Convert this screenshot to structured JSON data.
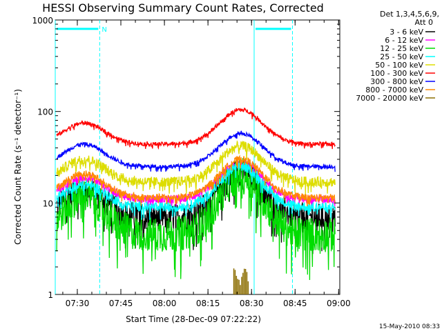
{
  "chart_data": {
    "type": "line",
    "title": "HESSI Observing Summary Count Rates, Corrected",
    "xlabel": "Start Time (28-Dec-09 07:22:22)",
    "ylabel": "Corrected Count Rate (s⁻¹ detector⁻¹)",
    "yscale": "log",
    "ylim": [
      1,
      1000
    ],
    "xlim_minutes": [
      0,
      98
    ],
    "x_ticks": [
      {
        "m": 7.6,
        "label": "07:30"
      },
      {
        "m": 22.6,
        "label": "07:45"
      },
      {
        "m": 37.6,
        "label": "08:00"
      },
      {
        "m": 52.6,
        "label": "08:15"
      },
      {
        "m": 67.6,
        "label": "08:30"
      },
      {
        "m": 82.6,
        "label": "08:45"
      },
      {
        "m": 97.6,
        "label": "09:00"
      }
    ],
    "y_ticks": [
      {
        "v": 1,
        "label": "1"
      },
      {
        "v": 10,
        "label": "10"
      },
      {
        "v": 100,
        "label": "100"
      },
      {
        "v": 1000,
        "label": "1000"
      }
    ],
    "legend_header": [
      "Det 1,3,4,5,6,9,",
      "Att 0"
    ],
    "legend_position": "right",
    "series": [
      {
        "name": "3 - 6 keV",
        "color": "#000000",
        "base": 7,
        "peak1": 14,
        "peak2": 22,
        "noise": 0.28
      },
      {
        "name": "6 - 12 keV",
        "color": "#ff00ff",
        "base": 11,
        "peak1": 19,
        "peak2": 27,
        "noise": 0.08
      },
      {
        "name": "12 - 25 keV",
        "color": "#00dd00",
        "base": 4.5,
        "peak1": 12,
        "peak2": 20,
        "noise": 0.35
      },
      {
        "name": "25 - 50 keV",
        "color": "#00ffff",
        "base": 9,
        "peak1": 16,
        "peak2": 25,
        "noise": 0.1
      },
      {
        "name": "50 - 100 keV",
        "color": "#dddd00",
        "base": 17,
        "peak1": 30,
        "peak2": 42,
        "noise": 0.1
      },
      {
        "name": "100 - 300 keV",
        "color": "#ff0000",
        "base": 44,
        "peak1": 75,
        "peak2": 105,
        "noise": 0.04
      },
      {
        "name": "300 - 800 keV",
        "color": "#0000ff",
        "base": 25,
        "peak1": 44,
        "peak2": 58,
        "noise": 0.04
      },
      {
        "name": "800 - 7000 keV",
        "color": "#ff8800",
        "base": 11.5,
        "peak1": 21,
        "peak2": 30,
        "noise": 0.07
      },
      {
        "name": "7000 - 20000 keV",
        "color": "#8b6d00",
        "base": 0,
        "peak1": 0,
        "peak2": 2,
        "noise": 0
      }
    ],
    "eclipse_bars": [
      {
        "start": 0,
        "end": 15.3,
        "label": "N"
      },
      {
        "start": 68.5,
        "end": 81.7,
        "label": ""
      }
    ],
    "eclipse_bar_value": 800,
    "solid_vlines": [
      0,
      68.5
    ],
    "dashed_vlines": [
      15.3,
      81.7
    ],
    "colors": {
      "eclipse": "#00ffff",
      "axis": "#000000",
      "background": "#ffffff"
    }
  },
  "footer": {
    "timestamp": "15-May-2010 08:33"
  }
}
